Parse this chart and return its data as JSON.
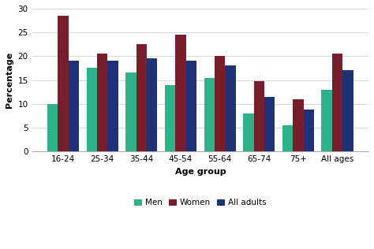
{
  "categories": [
    "16-24",
    "25-34",
    "35-44",
    "45-54",
    "55-64",
    "65-74",
    "75+",
    "All ages"
  ],
  "men": [
    10.0,
    17.5,
    16.5,
    14.0,
    15.5,
    8.0,
    5.5,
    13.0
  ],
  "women": [
    28.5,
    20.5,
    22.5,
    24.5,
    20.0,
    14.8,
    11.0,
    20.5
  ],
  "all_adults": [
    19.0,
    19.0,
    19.5,
    19.0,
    18.0,
    11.5,
    8.8,
    17.0
  ],
  "colors": {
    "men": "#2db38a",
    "women": "#7b1c2a",
    "all_adults": "#1f3278"
  },
  "legend_labels": [
    "Men",
    "Women",
    "All adults"
  ],
  "xlabel": "Age group",
  "ylabel": "Percentage",
  "ylim": [
    0,
    30
  ],
  "yticks": [
    0,
    5,
    10,
    15,
    20,
    25,
    30
  ],
  "bar_width": 0.27,
  "grid_color": "#d0d0d0",
  "background_color": "#ffffff"
}
